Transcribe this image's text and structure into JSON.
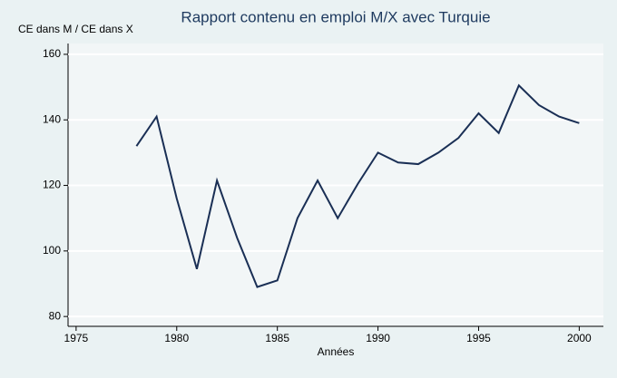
{
  "chart_data": {
    "type": "line",
    "title": "Rapport contenu en emploi M/X avec Turquie",
    "y_label": "CE dans M / CE dans X",
    "x_label": "Années",
    "x": [
      1978,
      1979,
      1980,
      1981,
      1982,
      1983,
      1984,
      1985,
      1986,
      1987,
      1988,
      1989,
      1990,
      1991,
      1992,
      1993,
      1994,
      1995,
      1996,
      1997,
      1998,
      1999,
      2000
    ],
    "series": [
      {
        "color": "#1a2f55",
        "values": [
          132,
          141,
          116,
          94.5,
          121.5,
          104,
          89,
          91,
          110,
          121.5,
          110,
          120.5,
          130,
          127,
          126.5,
          130,
          134.5,
          142,
          136,
          150.5,
          144.5,
          141,
          139
        ]
      }
    ],
    "xlim": [
      1974.6,
      2001.2
    ],
    "xticks": [
      1975,
      1980,
      1985,
      1990,
      1995,
      2000
    ],
    "ylim": [
      77,
      163.3
    ],
    "yticks": [
      80,
      100,
      120,
      140,
      160
    ],
    "grid": true
  }
}
